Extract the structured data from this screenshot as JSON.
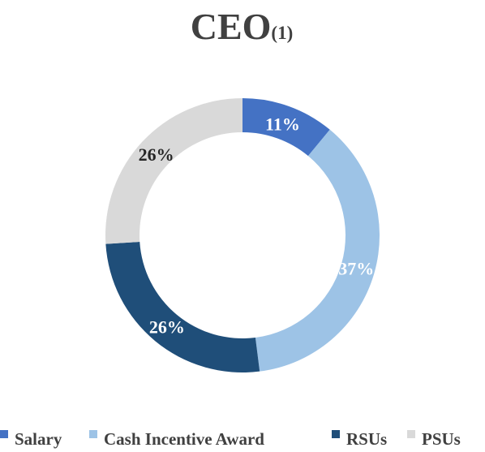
{
  "chart_data": {
    "type": "pie",
    "donut": true,
    "title": "CEO",
    "title_superscript": "(1)",
    "categories": [
      "Salary",
      "Cash Incentive Award",
      "RSUs",
      "PSUs"
    ],
    "values": [
      11,
      37,
      26,
      26
    ],
    "value_labels": [
      "11%",
      "37%",
      "26%",
      "26%"
    ],
    "colors": [
      "#4472C4",
      "#9DC3E6",
      "#1F4E79",
      "#D9D9D9"
    ],
    "label_colors": [
      "#FFFFFF",
      "#FFFFFF",
      "#FFFFFF",
      "#262626"
    ],
    "start_angle": "12 o'clock",
    "direction": "clockwise",
    "legend_position": "bottom"
  }
}
